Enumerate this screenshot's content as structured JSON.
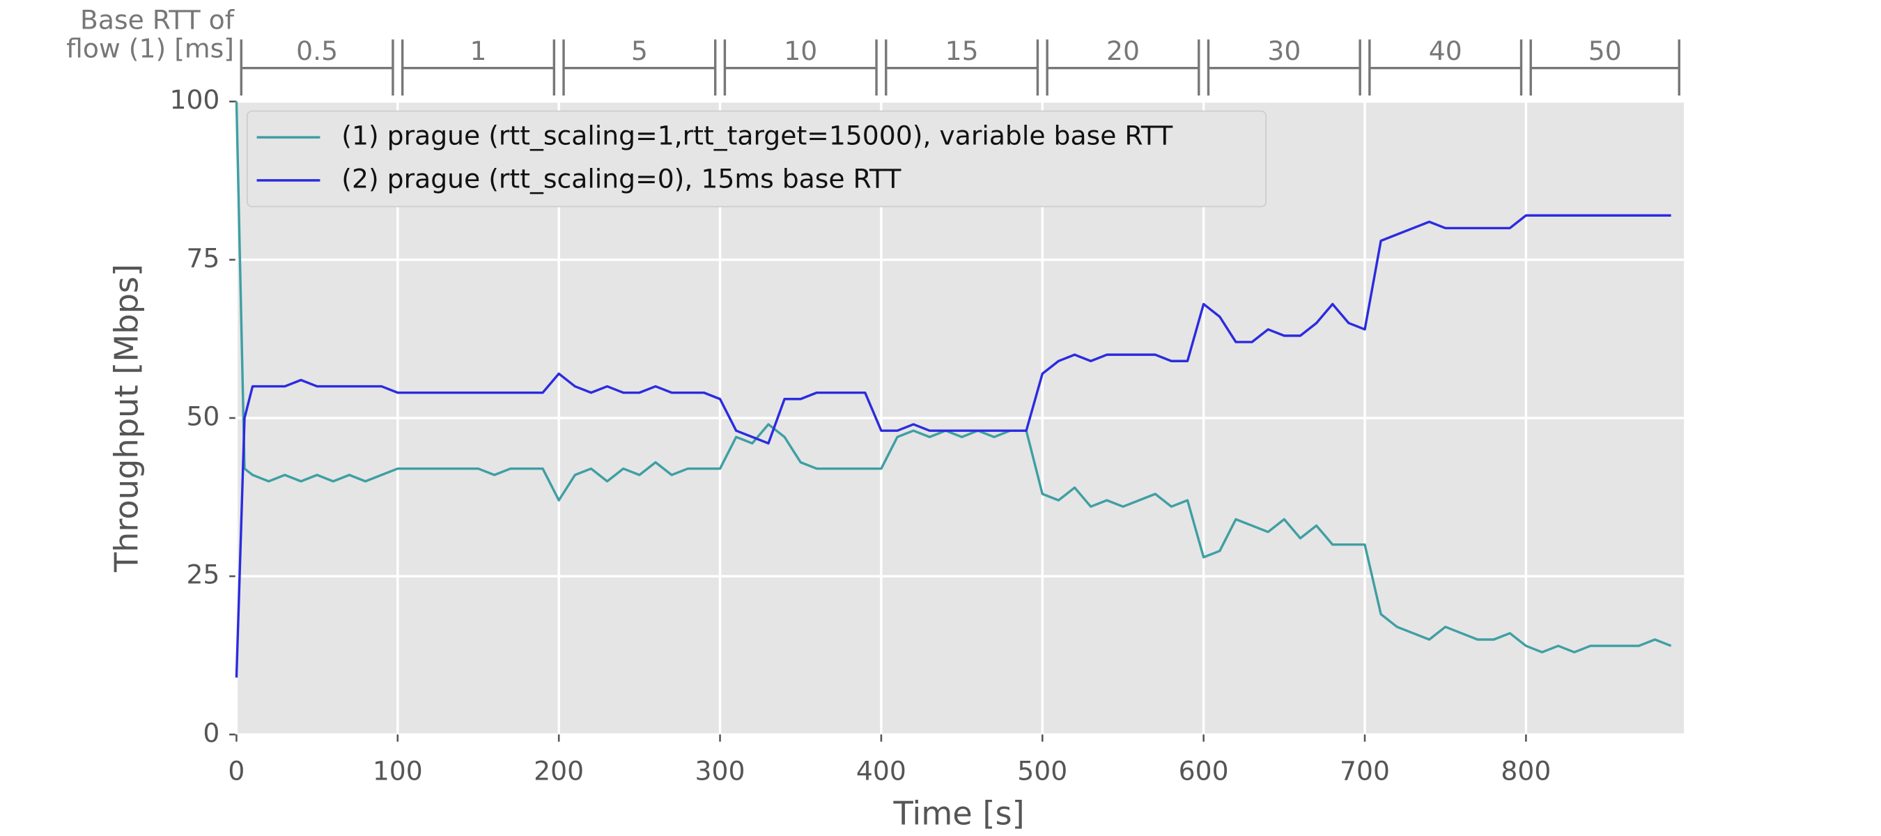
{
  "chart_data": {
    "type": "line",
    "xlabel": "Time [s]",
    "ylabel": "Throughput [Mbps]",
    "x": [
      0,
      5,
      10,
      20,
      30,
      40,
      50,
      60,
      70,
      80,
      90,
      100,
      110,
      120,
      130,
      140,
      150,
      160,
      170,
      180,
      190,
      200,
      210,
      220,
      230,
      240,
      250,
      260,
      270,
      280,
      290,
      300,
      310,
      320,
      330,
      340,
      350,
      360,
      370,
      380,
      390,
      400,
      410,
      420,
      430,
      440,
      450,
      460,
      470,
      480,
      490,
      500,
      510,
      520,
      530,
      540,
      550,
      560,
      570,
      580,
      590,
      600,
      610,
      620,
      630,
      640,
      650,
      660,
      670,
      680,
      690,
      700,
      710,
      720,
      730,
      740,
      750,
      760,
      770,
      780,
      790,
      800,
      810,
      820,
      830,
      840,
      850,
      860,
      870,
      880,
      890
    ],
    "series": [
      {
        "name": "(1) prague (rtt_scaling=1,rtt_target=15000), variable base RTT",
        "color": "#3f9fa3",
        "values": [
          100,
          42,
          41,
          40,
          41,
          40,
          41,
          40,
          41,
          40,
          41,
          42,
          42,
          42,
          42,
          42,
          42,
          41,
          42,
          42,
          42,
          37,
          41,
          42,
          40,
          42,
          41,
          43,
          41,
          42,
          42,
          42,
          47,
          46,
          49,
          47,
          43,
          42,
          42,
          42,
          42,
          42,
          47,
          48,
          47,
          48,
          47,
          48,
          47,
          48,
          48,
          38,
          37,
          39,
          36,
          37,
          36,
          37,
          38,
          36,
          37,
          28,
          29,
          34,
          33,
          32,
          34,
          31,
          33,
          30,
          30,
          30,
          19,
          17,
          16,
          15,
          17,
          16,
          15,
          15,
          16,
          14,
          13,
          14,
          13,
          14,
          14,
          14,
          14,
          15,
          14
        ]
      },
      {
        "name": "(2) prague (rtt_scaling=0), 15ms base RTT",
        "color": "#2b2be0",
        "values": [
          9,
          50,
          55,
          55,
          55,
          56,
          55,
          55,
          55,
          55,
          55,
          54,
          54,
          54,
          54,
          54,
          54,
          54,
          54,
          54,
          54,
          57,
          55,
          54,
          55,
          54,
          54,
          55,
          54,
          54,
          54,
          53,
          48,
          47,
          46,
          53,
          53,
          54,
          54,
          54,
          54,
          48,
          48,
          49,
          48,
          48,
          48,
          48,
          48,
          48,
          48,
          57,
          59,
          60,
          59,
          60,
          60,
          60,
          60,
          59,
          59,
          68,
          66,
          62,
          62,
          64,
          63,
          63,
          65,
          68,
          65,
          64,
          78,
          79,
          80,
          81,
          80,
          80,
          80,
          80,
          80,
          82,
          82,
          82,
          82,
          82,
          82,
          82,
          82,
          82,
          82
        ]
      }
    ],
    "xlim": [
      0,
      898
    ],
    "ylim": [
      0,
      100
    ],
    "xticks": [
      0,
      100,
      200,
      300,
      400,
      500,
      600,
      700,
      800
    ],
    "yticks": [
      0,
      25,
      50,
      75,
      100
    ],
    "grid": true,
    "legend": "upper left",
    "annotation": {
      "title": [
        "Base RTT of",
        "flow (1) [ms]"
      ],
      "segments": [
        {
          "label": "0.5",
          "range": [
            0,
            100
          ]
        },
        {
          "label": "1",
          "range": [
            100,
            200
          ]
        },
        {
          "label": "5",
          "range": [
            200,
            300
          ]
        },
        {
          "label": "10",
          "range": [
            300,
            400
          ]
        },
        {
          "label": "15",
          "range": [
            400,
            500
          ]
        },
        {
          "label": "20",
          "range": [
            500,
            600
          ]
        },
        {
          "label": "30",
          "range": [
            600,
            700
          ]
        },
        {
          "label": "40",
          "range": [
            700,
            800
          ]
        },
        {
          "label": "50",
          "range": [
            800,
            898
          ]
        }
      ]
    }
  }
}
